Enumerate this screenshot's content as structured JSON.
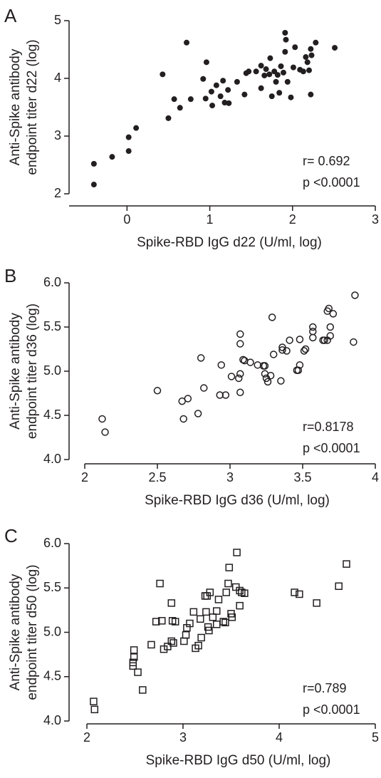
{
  "chart_data": [
    {
      "type": "scatter",
      "panel_label": "A",
      "marker": "filled-circle",
      "color": "#231f20",
      "x_label": "Spike-RBD IgG d22 (U/ml, log)",
      "y_label": [
        "Anti-Spike antibody",
        "endpoint titer d22 (log)"
      ],
      "annotations": [
        "r= 0.692",
        "p <0.0001"
      ],
      "xlim": [
        -0.7,
        3
      ],
      "xticks": [
        0,
        1,
        2,
        3
      ],
      "ylim": [
        2,
        5
      ],
      "yticks": [
        2,
        3,
        4,
        5
      ],
      "series": [
        {
          "x": [
            -0.4,
            -0.4,
            -0.18,
            0.02,
            0.02,
            0.11,
            0.43,
            0.5,
            0.57,
            0.64,
            0.72,
            0.77,
            0.92,
            0.96,
            0.95,
            1.02,
            1.03,
            1.08,
            1.13,
            1.16,
            1.18,
            1.22,
            1.23,
            1.33,
            1.42,
            1.44,
            1.47,
            1.56,
            1.62,
            1.62,
            1.66,
            1.68,
            1.72,
            1.73,
            1.75,
            1.78,
            1.8,
            1.82,
            1.84,
            1.86,
            1.89,
            1.91,
            1.91,
            1.92,
            1.94,
            1.98,
            2.01,
            2.03,
            2.09,
            2.13,
            2.16,
            2.18,
            2.2,
            2.22,
            2.22,
            2.23,
            2.28,
            2.51
          ],
          "y": [
            2.52,
            2.16,
            2.64,
            2.98,
            2.74,
            3.14,
            4.07,
            3.31,
            3.64,
            3.49,
            4.62,
            3.64,
            3.99,
            4.28,
            3.65,
            3.77,
            3.53,
            3.88,
            3.69,
            3.96,
            3.58,
            3.8,
            3.57,
            3.94,
            3.72,
            4.09,
            4.12,
            4.12,
            3.83,
            4.22,
            4.05,
            4.16,
            4.07,
            4.35,
            3.69,
            4.12,
            3.94,
            4.06,
            3.75,
            4.21,
            4.1,
            4.46,
            4.79,
            4.67,
            3.94,
            3.67,
            4.19,
            4.54,
            4.15,
            4.12,
            4.37,
            4.28,
            4.14,
            3.72,
            4.51,
            4.4,
            4.62,
            4.53
          ]
        }
      ]
    },
    {
      "type": "scatter",
      "panel_label": "B",
      "marker": "open-circle",
      "color": "#231f20",
      "x_label": "Spike-RBD IgG d36 (U/ml, log)",
      "y_label": [
        "Anti-Spike antibody",
        "endpoint titer d36 (log)"
      ],
      "annotations": [
        "r=0.8178",
        "p <0.0001"
      ],
      "xlim": [
        2,
        4
      ],
      "xticks": [
        2,
        2.5,
        3,
        3.5,
        4
      ],
      "ylim": [
        4,
        6
      ],
      "yticks": [
        {
          "value": 4,
          "label": "4.0"
        },
        4.5,
        {
          "value": 5,
          "label": "5.0"
        },
        5.5,
        {
          "value": 6,
          "label": "6.0"
        }
      ],
      "series": [
        {
          "x": [
            2.12,
            2.14,
            2.5,
            2.67,
            2.71,
            2.68,
            2.78,
            2.8,
            2.82,
            2.93,
            2.94,
            2.97,
            3.01,
            3.06,
            3.07,
            3.07,
            3.07,
            3.07,
            3.09,
            3.1,
            3.14,
            3.19,
            3.23,
            3.24,
            3.24,
            3.25,
            3.26,
            3.28,
            3.29,
            3.3,
            3.35,
            3.36,
            3.36,
            3.39,
            3.41,
            3.46,
            3.47,
            3.48,
            3.48,
            3.51,
            3.52,
            3.57,
            3.57,
            3.57,
            3.64,
            3.65,
            3.67,
            3.67,
            3.68,
            3.69,
            3.69,
            3.71,
            3.85,
            3.86
          ],
          "y": [
            4.46,
            4.31,
            4.78,
            4.66,
            4.69,
            4.46,
            4.52,
            5.15,
            4.81,
            4.73,
            5.07,
            4.73,
            4.94,
            4.92,
            5.42,
            5.31,
            4.97,
            4.76,
            5.13,
            5.12,
            5.1,
            5.07,
            5.06,
            5.06,
            4.97,
            4.92,
            4.88,
            4.95,
            5.61,
            5.19,
            4.89,
            5.24,
            5.27,
            5.23,
            5.35,
            5.01,
            5.01,
            5.07,
            5.36,
            5.23,
            5.25,
            5.5,
            5.45,
            5.38,
            5.35,
            5.35,
            5.35,
            5.68,
            5.71,
            5.4,
            5.5,
            5.65,
            5.33,
            5.86
          ]
        }
      ]
    },
    {
      "type": "scatter",
      "panel_label": "C",
      "marker": "open-square",
      "color": "#231f20",
      "x_label": "Spike-RBD IgG d50 (U/ml, log)",
      "y_label": [
        "Anti-Spike antibody",
        "endpoint titer d50 (log)"
      ],
      "annotations": [
        "r=0.789",
        "p <0.0001"
      ],
      "xlim": [
        2,
        5
      ],
      "xticks": [
        2,
        3,
        4,
        5
      ],
      "ylim": [
        4,
        6
      ],
      "yticks": [
        {
          "value": 4,
          "label": "4.0"
        },
        4.5,
        {
          "value": 5,
          "label": "5.0"
        },
        5.5,
        {
          "value": 6,
          "label": "6.0"
        }
      ],
      "series": [
        {
          "x": [
            2.07,
            2.08,
            2.49,
            2.49,
            2.48,
            2.48,
            2.53,
            2.58,
            2.67,
            2.72,
            2.76,
            2.78,
            2.8,
            2.84,
            2.88,
            2.88,
            2.89,
            2.9,
            2.92,
            3.01,
            3.03,
            3.04,
            3.07,
            3.11,
            3.13,
            3.16,
            3.18,
            3.19,
            3.23,
            3.24,
            3.25,
            3.26,
            3.27,
            3.28,
            3.31,
            3.35,
            3.35,
            3.37,
            3.42,
            3.44,
            3.45,
            3.47,
            3.48,
            3.5,
            3.51,
            3.55,
            3.56,
            3.59,
            3.59,
            3.61,
            3.64,
            4.16,
            4.21,
            4.39,
            4.62,
            4.7
          ],
          "y": [
            4.22,
            4.13,
            4.8,
            4.72,
            4.66,
            4.62,
            4.55,
            4.35,
            4.86,
            5.12,
            5.55,
            5.13,
            4.81,
            4.84,
            5.33,
            4.9,
            5.13,
            4.88,
            5.12,
            4.9,
            4.97,
            5.05,
            5.1,
            5.23,
            4.82,
            4.85,
            5.15,
            4.94,
            5.41,
            5.23,
            5.41,
            5.06,
            5.02,
            5.45,
            5.17,
            5.24,
            5.09,
            5.37,
            5.12,
            5.11,
            5.45,
            5.55,
            5.73,
            5.21,
            5.17,
            5.51,
            5.9,
            5.3,
            5.47,
            5.45,
            5.44,
            5.45,
            5.43,
            5.33,
            5.52,
            5.77
          ]
        }
      ]
    }
  ]
}
